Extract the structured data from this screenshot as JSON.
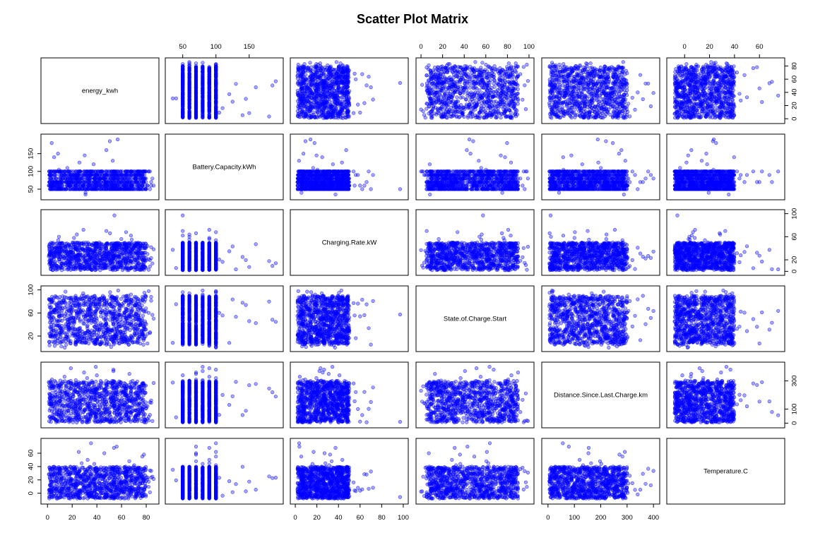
{
  "chart_data": {
    "type": "scatter",
    "title": "Scatter Plot Matrix",
    "point_color": "#0000ff",
    "point_fill_opacity": 0.35,
    "n_points": 1000,
    "variables": [
      {
        "name": "energy_kwh",
        "range": [
          -3,
          88
        ],
        "ticks": [
          0,
          20,
          40,
          60,
          80
        ]
      },
      {
        "name": "Battery.Capacity.kWh",
        "range": [
          28,
          197
        ],
        "ticks": [
          50,
          100,
          150
        ]
      },
      {
        "name": "Charging.Rate.kW",
        "range": [
          -2,
          102
        ],
        "ticks": [
          0,
          20,
          40,
          60,
          80,
          100
        ]
      },
      {
        "name": "State.of.Charge.Start",
        "range": [
          -2,
          102
        ],
        "ticks": [
          0,
          20,
          40,
          60,
          80,
          100
        ]
      },
      {
        "name": "Distance.Since.Last.Charge.km",
        "range": [
          -13,
          413
        ],
        "ticks": [
          0,
          100,
          200,
          300,
          400
        ]
      },
      {
        "name": "Temperature.C",
        "range": [
          -12,
          78
        ],
        "ticks": [
          0,
          20,
          40,
          60
        ]
      }
    ],
    "axis_labels": {
      "top": [
        {
          "var": 1,
          "ticks": [
            "50",
            "100",
            "150"
          ]
        },
        {
          "var": 3,
          "ticks": [
            "0",
            "20",
            "40",
            "60",
            "80",
            "100"
          ]
        },
        {
          "var": 5,
          "ticks": [
            "0",
            "20",
            "40",
            "60"
          ]
        }
      ],
      "bottom": [
        {
          "var": 0,
          "ticks": [
            "0",
            "20",
            "40",
            "60",
            "80"
          ]
        },
        {
          "var": 2,
          "ticks": [
            "0",
            "20",
            "40",
            "60",
            "80",
            "100"
          ]
        },
        {
          "var": 4,
          "ticks": [
            "0",
            "100",
            "200",
            "300",
            "400"
          ]
        }
      ],
      "right": [
        {
          "var": 0,
          "ticks": [
            "0",
            "20",
            "40",
            "60",
            "80"
          ]
        },
        {
          "var": 2,
          "ticks": [
            "0",
            "20",
            "60",
            "100"
          ]
        },
        {
          "var": 4,
          "ticks": [
            "0",
            "100",
            "300"
          ]
        }
      ],
      "left": [
        {
          "var": 1,
          "ticks": [
            "50",
            "100",
            "150"
          ]
        },
        {
          "var": 3,
          "ticks": [
            "20",
            "60",
            "100"
          ]
        },
        {
          "var": 5,
          "ticks": [
            "0",
            "20",
            "40",
            "60"
          ]
        }
      ]
    },
    "distributions": {
      "energy_kwh": {
        "kind": "uniform",
        "min": 1,
        "max": 80
      },
      "Battery.Capacity.kWh": {
        "kind": "discrete",
        "levels": [
          50,
          60,
          70,
          80,
          90,
          100
        ]
      },
      "Charging.Rate.kW": {
        "kind": "uniform",
        "min": 2,
        "max": 50
      },
      "State.of.Charge.Start": {
        "kind": "uniform",
        "min": 5,
        "max": 90
      },
      "Distance.Since.Last.Charge.km": {
        "kind": "uniform",
        "min": 5,
        "max": 300
      },
      "Temperature.C": {
        "kind": "uniform",
        "min": -8,
        "max": 40
      }
    },
    "outliers": {
      "energy_kwh": [
        85,
        82,
        84,
        81,
        83,
        86,
        80,
        79,
        82,
        84,
        81,
        83
      ],
      "Battery.Capacity.kWh": [
        190,
        185,
        180,
        160,
        150,
        145,
        140,
        130,
        125,
        120,
        110,
        105,
        40,
        35
      ],
      "Charging.Rate.kW": [
        97,
        72,
        70,
        68,
        66,
        64,
        62,
        60,
        58,
        56,
        55,
        54
      ],
      "State.of.Charge.Start": [
        98,
        97,
        96,
        95,
        2,
        1,
        0,
        3,
        99,
        94,
        4,
        92
      ],
      "Distance.Since.Last.Charge.km": [
        400,
        390,
        380,
        370,
        360,
        350,
        340,
        330,
        320,
        310,
        305,
        302
      ],
      "Temperature.C": [
        75,
        70,
        68,
        62,
        60,
        58,
        55,
        50,
        48,
        45,
        44,
        42
      ]
    }
  }
}
